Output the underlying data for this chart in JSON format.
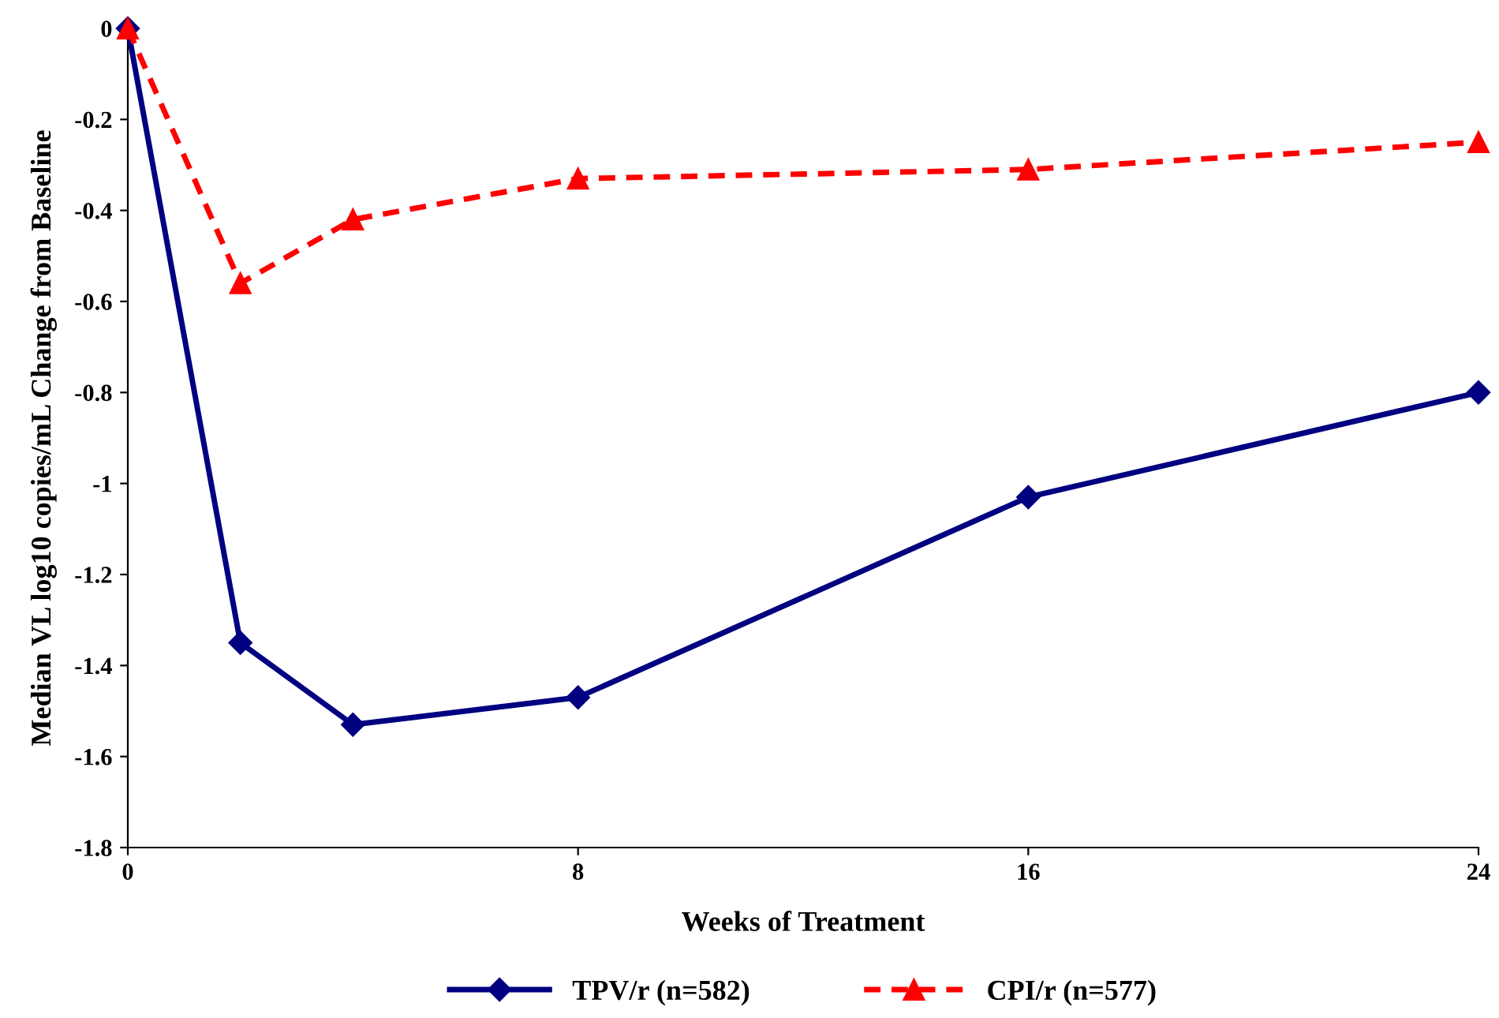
{
  "chart_data": {
    "type": "line",
    "xlabel": "Weeks of Treatment",
    "ylabel": "Median VL log10 copies/mL Change from Baseline",
    "xlim": [
      0,
      24
    ],
    "xticks": [
      0,
      8,
      16,
      24
    ],
    "ylim": [
      -1.8,
      0
    ],
    "yticks": [
      -1.8,
      -1.6,
      -1.4,
      -1.2,
      -1,
      -0.8,
      -0.6,
      -0.4,
      -0.2,
      0
    ],
    "grid": false,
    "legend": "bottom",
    "series": [
      {
        "name": "TPV/r (n=582)",
        "color": "#000080",
        "x": [
          0,
          2,
          4,
          8,
          16,
          24
        ],
        "values": [
          0,
          -1.35,
          -1.53,
          -1.47,
          -1.03,
          -0.8
        ],
        "marker": "diamond",
        "line_style": "solid"
      },
      {
        "name": "CPI/r (n=577)",
        "color": "#ff0000",
        "x": [
          0,
          2,
          4,
          8,
          16,
          24
        ],
        "values": [
          0,
          -0.56,
          -0.42,
          -0.33,
          -0.31,
          -0.25
        ],
        "marker": "triangle",
        "line_style": "dashed"
      }
    ]
  }
}
